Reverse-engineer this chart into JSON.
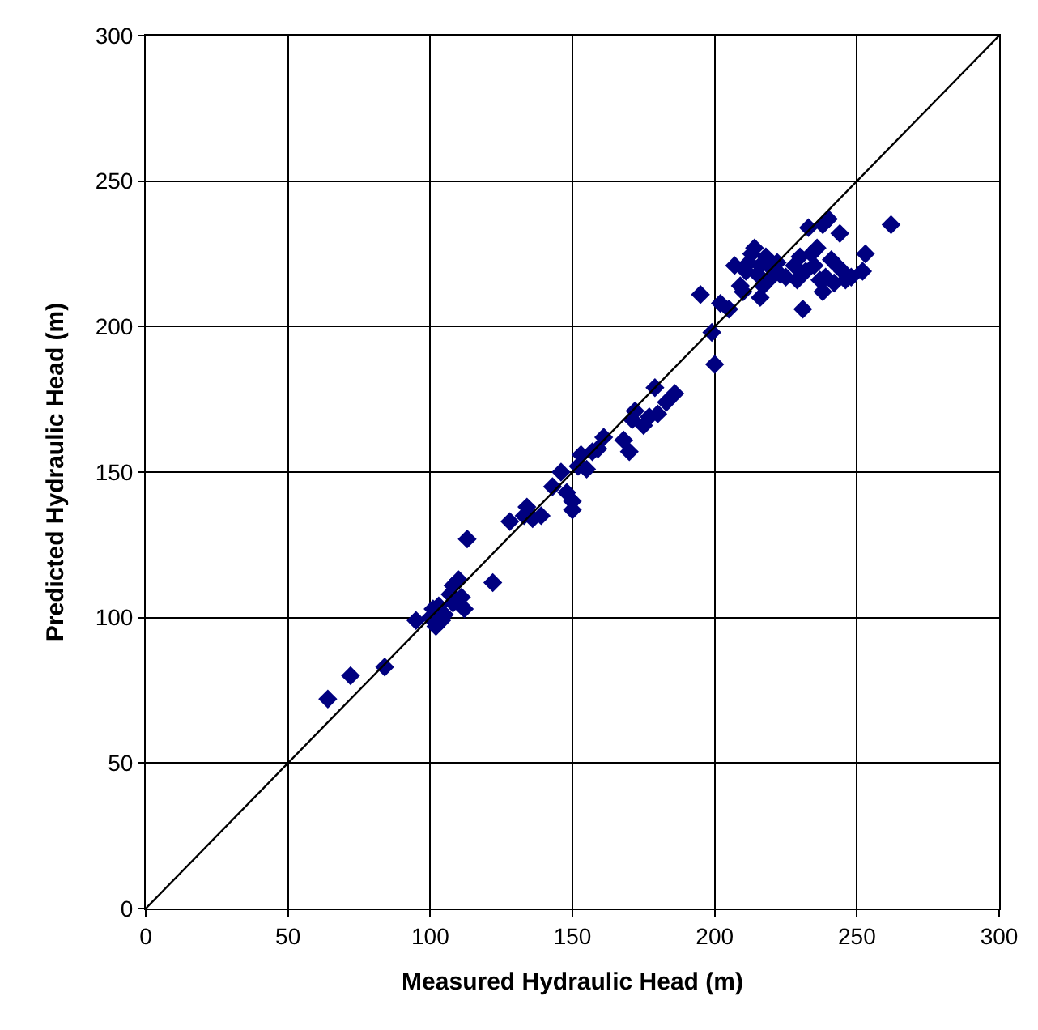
{
  "chart_data": {
    "type": "scatter",
    "xlabel": "Measured Hydraulic Head (m)",
    "ylabel": "Predicted Hydraulic Head (m)",
    "xlim": [
      0,
      300
    ],
    "ylim": [
      0,
      300
    ],
    "xticks": [
      0,
      50,
      100,
      150,
      200,
      250,
      300
    ],
    "yticks": [
      0,
      50,
      100,
      150,
      200,
      250,
      300
    ],
    "grid": true,
    "marker": "diamond",
    "series": [
      {
        "color": "#000080",
        "x": [
          64,
          72,
          84,
          95,
          100,
          101,
          103,
          105,
          102,
          107,
          108,
          110,
          112,
          113,
          122,
          108,
          111,
          104,
          128,
          133,
          134,
          136,
          139,
          143,
          146,
          148,
          150,
          150,
          152,
          153,
          155,
          157,
          159,
          161,
          168,
          170,
          171,
          172,
          175,
          177,
          179,
          180,
          183,
          186,
          195,
          199,
          200,
          202,
          205,
          207,
          209,
          211,
          212,
          213,
          214,
          215,
          216,
          217,
          218,
          219,
          220,
          222,
          223,
          225,
          229,
          230,
          231,
          232,
          233,
          234,
          235,
          236,
          237,
          238,
          239,
          240,
          241,
          242,
          243,
          244,
          245,
          246,
          248,
          252,
          253,
          262,
          210,
          216,
          228,
          238
        ],
        "values": [
          72,
          80,
          83,
          99,
          100,
          103,
          104,
          101,
          97,
          108,
          111,
          113,
          103,
          127,
          112,
          105,
          107,
          99,
          133,
          135,
          138,
          134,
          135,
          145,
          150,
          143,
          140,
          137,
          152,
          156,
          151,
          157,
          158,
          162,
          161,
          157,
          168,
          171,
          166,
          169,
          179,
          170,
          174,
          177,
          211,
          198,
          187,
          208,
          206,
          221,
          214,
          219,
          222,
          225,
          227,
          218,
          221,
          214,
          224,
          216,
          220,
          222,
          218,
          217,
          216,
          224,
          206,
          219,
          234,
          225,
          221,
          227,
          216,
          235,
          217,
          237,
          223,
          215,
          221,
          232,
          219,
          216,
          217,
          219,
          225,
          235,
          212,
          210,
          221,
          212
        ]
      },
      {
        "type": "line",
        "color": "#000000",
        "x": [
          0,
          300
        ],
        "values": [
          0,
          300
        ],
        "marker": "none",
        "line_style": "solid"
      }
    ]
  }
}
